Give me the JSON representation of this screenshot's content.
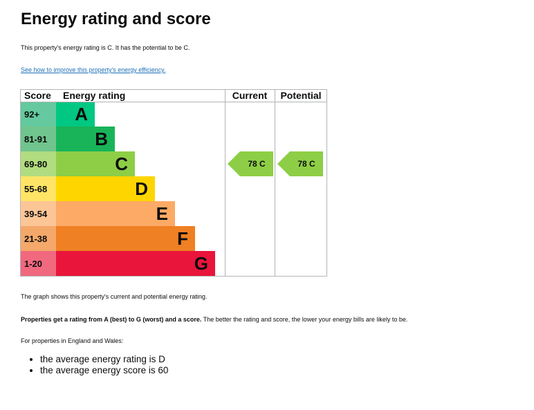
{
  "page": {
    "title": "Energy rating and score",
    "summary": "This property's energy rating is C. It has the potential to be C.",
    "improve_link": "See how to improve this property's energy efficiency.",
    "graph_caption": "The graph shows this property's current and potential energy rating.",
    "ratings_bold": "Properties get a rating from A (best) to G (worst) and a score.",
    "ratings_rest": " The better the rating and score, the lower your energy bills are likely to be.",
    "regional_intro": "For properties in England and Wales:",
    "averages": [
      "the average energy rating is D",
      "the average energy score is 60"
    ]
  },
  "chart_data": {
    "type": "table",
    "headers": {
      "score": "Score",
      "rating": "Energy rating",
      "current": "Current",
      "potential": "Potential"
    },
    "bands": [
      {
        "score": "92+",
        "letter": "A",
        "color": "#00c781",
        "score_bg": "#64c99e"
      },
      {
        "score": "81-91",
        "letter": "B",
        "color": "#19b459",
        "score_bg": "#70c48d"
      },
      {
        "score": "69-80",
        "letter": "C",
        "color": "#8dce46",
        "score_bg": "#b1dc80"
      },
      {
        "score": "55-68",
        "letter": "D",
        "color": "#ffd500",
        "score_bg": "#ffe466"
      },
      {
        "score": "39-54",
        "letter": "E",
        "color": "#fcaa65",
        "score_bg": "#fcc596"
      },
      {
        "score": "21-38",
        "letter": "F",
        "color": "#ef8023",
        "score_bg": "#f4a86a"
      },
      {
        "score": "1-20",
        "letter": "G",
        "color": "#e9153b",
        "score_bg": "#f0697f"
      }
    ],
    "current": {
      "score": 78,
      "letter": "C",
      "label": "78  C"
    },
    "potential": {
      "score": 78,
      "letter": "C",
      "label": "78  C"
    }
  }
}
